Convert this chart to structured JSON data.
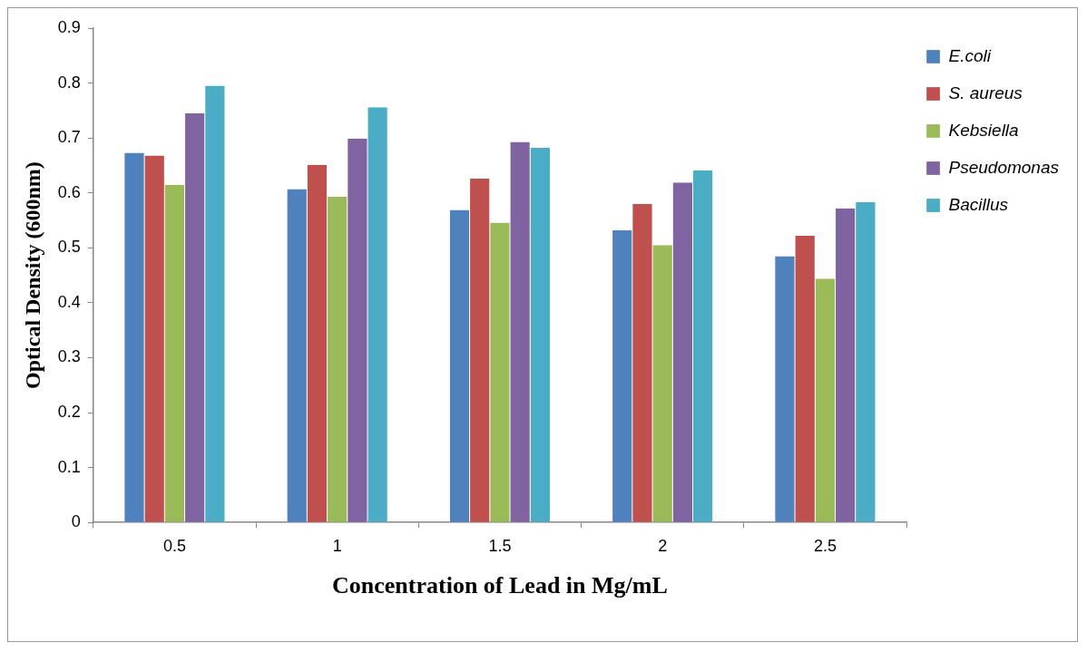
{
  "chart_data": {
    "type": "bar",
    "xlabel": "Concentration of Lead in Mg/mL",
    "ylabel": "Optical Density (600nm)",
    "categories": [
      "0.5",
      "1",
      "1.5",
      "2",
      "2.5"
    ],
    "series": [
      {
        "name": "E.coli",
        "color": "#4f81bd",
        "values": [
          0.673,
          0.607,
          0.569,
          0.532,
          0.485
        ]
      },
      {
        "name": "S. aureus",
        "color": "#c0504d",
        "values": [
          0.668,
          0.651,
          0.626,
          0.58,
          0.522
        ]
      },
      {
        "name": "Kebsiella",
        "color": "#9bbb59",
        "values": [
          0.615,
          0.593,
          0.546,
          0.505,
          0.444
        ]
      },
      {
        "name": "Pseudomonas",
        "color": "#8064a2",
        "values": [
          0.745,
          0.699,
          0.693,
          0.619,
          0.572
        ]
      },
      {
        "name": "Bacillus",
        "color": "#4bacc6",
        "values": [
          0.795,
          0.756,
          0.682,
          0.641,
          0.583
        ]
      }
    ],
    "ylim": [
      0,
      0.9
    ],
    "yticks": [
      0,
      0.1,
      0.2,
      0.3,
      0.4,
      0.5,
      0.6,
      0.7,
      0.8,
      0.9
    ],
    "grid": false,
    "legend": "top right"
  }
}
